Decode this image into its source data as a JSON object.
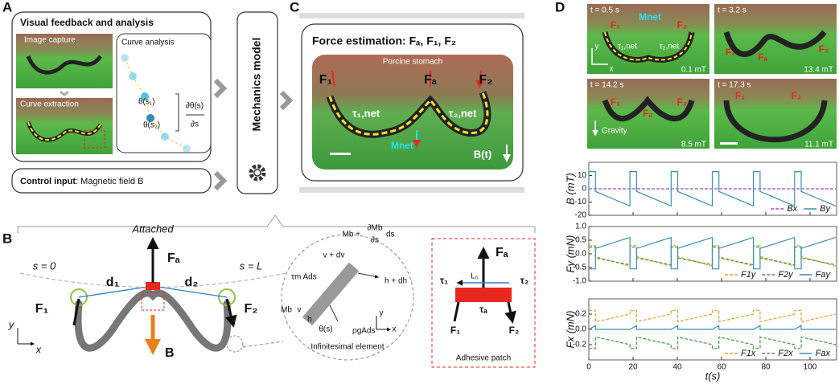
{
  "panel_labels": [
    "A",
    "B",
    "C",
    "D"
  ],
  "panel_a": {
    "title": "Visual feedback and analysis",
    "image_capture": "Image capture",
    "curve_extraction": "Curve extraction",
    "curve_analysis": "Curve analysis",
    "theta_s1": "θ(s₁)",
    "theta_s2": "θ(s₂)",
    "derivative_top": "∂θ(s)",
    "derivative_bottom": "∂s",
    "control_input_label": "Control input",
    "control_input_text": ": Magnetic field B"
  },
  "mechanics_model": "Mechanics model",
  "panel_c": {
    "title": "Force estimation: Fₐ, F₁, F₂",
    "photo_caption": "Porcine stomach",
    "f1": "F₁",
    "fa": "Fₐ",
    "f2": "F₂",
    "tau1": "τ₁,net",
    "tau2": "τ₂,net",
    "mnet": "Mnet",
    "bt": "B(t)"
  },
  "panel_b": {
    "attached": "Attached",
    "s0": "s = 0",
    "sl": "s = L",
    "fa": "Fₐ",
    "d1": "d₁",
    "d2": "d₂",
    "f1": "F₁",
    "f2": "F₂",
    "b": "B",
    "axis_y": "y",
    "axis_x": "x",
    "element": {
      "mb_plus": "Mb +",
      "dmb": "∂Mb",
      "ds_frac": "∂s",
      "ds": "ds",
      "v_dv": "v + dv",
      "tau_m": "τm Ads",
      "h_dh": "h + dh",
      "mb": "Mb",
      "v": "v",
      "h": "h",
      "theta": "θ(s)",
      "rho": "ρgAds",
      "axis_y": "y",
      "axis_x": "x",
      "caption": "Infinitesimal element"
    },
    "patch": {
      "l0": "L₀",
      "fa": "Fₐ",
      "tau1": "τ₁",
      "tau2": "τ₂",
      "taua": "τₐ",
      "f1": "F₁",
      "f2": "F₂",
      "caption": "Adhesive patch"
    }
  },
  "panel_d": {
    "photos": [
      {
        "time": "t = 0.5 s",
        "field": "0.1 mT",
        "f1": "F₁",
        "f2": "F₂",
        "mnet": "Mnet",
        "tau1": "τ₁,net",
        "tau2": "τ₂,net",
        "axis_y": "y",
        "axis_x": "x"
      },
      {
        "time": "t = 3.2 s",
        "field": "13.4 mT",
        "f1": "F₁",
        "fa": "Fₐ",
        "f2": "F₂"
      },
      {
        "time": "t = 14.2 s",
        "field": "8.5 mT",
        "f1": "F₁",
        "fa": "Fₐ",
        "f2": "F₂",
        "gravity": "Gravity"
      },
      {
        "time": "t = 17.3 s",
        "field": "11.1 mT",
        "f1": "F₁",
        "f2": "F₂"
      }
    ],
    "plots": [
      {
        "type": "line",
        "ylabel": "B (mT)",
        "xlim": [
          0,
          112
        ],
        "xticks": [
          0,
          20,
          40,
          60,
          80,
          100
        ],
        "ylim": [
          -20,
          20
        ],
        "yticks": [
          -20,
          -10,
          0,
          10
        ],
        "series": [
          {
            "name": "Bx",
            "color": "#9b4fc0",
            "dashed": true,
            "x": [
              0,
              112
            ],
            "values": [
              0,
              0
            ]
          },
          {
            "name": "By",
            "color": "#3a8fb7",
            "dashed": false,
            "x": [
              0,
              0,
              3,
              3,
              18.6,
              18.6,
              18.6,
              21.6,
              21.6,
              37.2,
              37.2,
              37.2,
              40.2,
              40.2,
              55.8,
              55.8,
              55.8,
              58.8,
              58.8,
              74.4,
              74.4,
              74.4,
              77.4,
              77.4,
              93,
              93,
              93,
              96,
              96,
              111.6
            ],
            "values": [
              0,
              13,
              13,
              -2,
              -13,
              0,
              13,
              13,
              -2,
              -13,
              0,
              13,
              13,
              -2,
              -13,
              0,
              13,
              13,
              -2,
              -13,
              0,
              13,
              13,
              -2,
              -13,
              0,
              13,
              13,
              -2,
              -13
            ]
          }
        ]
      },
      {
        "type": "line",
        "ylabel": "Fy (mN)",
        "xlim": [
          0,
          112
        ],
        "xticks": [
          0,
          20,
          40,
          60,
          80,
          100
        ],
        "ylim": [
          -1,
          1
        ],
        "yticks": [
          {
            "value": -1,
            "label": "-1.0"
          },
          {
            "value": -0.5,
            "label": "-0.5"
          },
          {
            "value": 0,
            "label": "0.0"
          },
          {
            "value": 0.5,
            "label": "0.5"
          },
          {
            "value": 1,
            "label": "1.0"
          }
        ],
        "series": [
          {
            "name": "F1y",
            "color": "#e0a030",
            "dashed": true,
            "x": [
              0,
              3,
              3,
              18.6,
              18.6,
              21.6,
              21.6,
              37.2,
              37.2,
              40.2,
              40.2,
              55.8,
              55.8,
              58.8,
              58.8,
              74.4,
              74.4,
              77.4,
              77.4,
              93,
              93,
              96,
              96,
              111.6
            ],
            "values": [
              0.3,
              0.3,
              -0.1,
              -0.45,
              0.3,
              0.3,
              -0.1,
              -0.45,
              0.3,
              0.3,
              -0.1,
              -0.45,
              0.3,
              0.3,
              -0.1,
              -0.45,
              0.3,
              0.3,
              -0.1,
              -0.45,
              0.3,
              0.3,
              -0.1,
              -0.45
            ]
          },
          {
            "name": "F2y",
            "color": "#3c9a3c",
            "dashed": true,
            "x": [
              0,
              3,
              3,
              18.6,
              18.6,
              21.6,
              21.6,
              37.2,
              37.2,
              40.2,
              40.2,
              55.8,
              55.8,
              58.8,
              58.8,
              74.4,
              74.4,
              77.4,
              77.4,
              93,
              93,
              96,
              96,
              111.6
            ],
            "values": [
              0.25,
              0.25,
              -0.15,
              -0.4,
              0.25,
              0.25,
              -0.15,
              -0.4,
              0.25,
              0.25,
              -0.15,
              -0.4,
              0.25,
              0.25,
              -0.15,
              -0.4,
              0.25,
              0.25,
              -0.15,
              -0.4,
              0.25,
              0.25,
              -0.15,
              -0.4
            ]
          },
          {
            "name": "Fay",
            "color": "#3a8fb7",
            "dashed": false,
            "x": [
              0,
              3,
              3,
              18.6,
              18.6,
              21.6,
              21.6,
              37.2,
              37.2,
              40.2,
              40.2,
              55.8,
              55.8,
              58.8,
              58.8,
              74.4,
              74.4,
              77.4,
              77.4,
              93,
              93,
              96,
              96,
              111.6
            ],
            "values": [
              -0.55,
              -0.55,
              0.2,
              0.6,
              -0.55,
              -0.55,
              0.2,
              0.6,
              -0.55,
              -0.55,
              0.2,
              0.6,
              -0.55,
              -0.55,
              0.2,
              0.6,
              -0.55,
              -0.55,
              0.2,
              0.6,
              -0.55,
              -0.55,
              0.2,
              0.6
            ]
          }
        ]
      },
      {
        "type": "line",
        "ylabel": "Fx (mN)",
        "xlabel": "t(s)",
        "xlim": [
          0,
          112
        ],
        "xticks": [
          0,
          20,
          40,
          60,
          80,
          100
        ],
        "ylim": [
          -0.4,
          0.4
        ],
        "yticks": [
          {
            "value": -0.2,
            "label": "-0.2"
          },
          {
            "value": 0,
            "label": "0.0"
          },
          {
            "value": 0.2,
            "label": "0.2"
          }
        ],
        "series": [
          {
            "name": "F1x",
            "color": "#e0a030",
            "dashed": true,
            "x": [
              0,
              3,
              3,
              18.6,
              18.6,
              21.6,
              21.6,
              37.2,
              37.2,
              40.2,
              40.2,
              55.8,
              55.8,
              58.8,
              58.8,
              74.4,
              74.4,
              77.4,
              77.4,
              93,
              93,
              96,
              96,
              111.6
            ],
            "values": [
              0.25,
              0.25,
              0.1,
              0.2,
              0.25,
              0.25,
              0.1,
              0.2,
              0.25,
              0.25,
              0.1,
              0.2,
              0.25,
              0.25,
              0.1,
              0.2,
              0.25,
              0.25,
              0.1,
              0.2,
              0.25,
              0.25,
              0.1,
              0.2
            ]
          },
          {
            "name": "F2x",
            "color": "#3c9a3c",
            "dashed": true,
            "x": [
              0,
              3,
              3,
              18.6,
              18.6,
              21.6,
              21.6,
              37.2,
              37.2,
              40.2,
              40.2,
              55.8,
              55.8,
              58.8,
              58.8,
              74.4,
              74.4,
              77.4,
              77.4,
              93,
              93,
              96,
              96,
              111.6
            ],
            "values": [
              -0.25,
              -0.25,
              -0.1,
              -0.2,
              -0.25,
              -0.25,
              -0.1,
              -0.2,
              -0.25,
              -0.25,
              -0.1,
              -0.2,
              -0.25,
              -0.25,
              -0.1,
              -0.2,
              -0.25,
              -0.25,
              -0.1,
              -0.2,
              -0.25,
              -0.25,
              -0.1,
              -0.2
            ]
          },
          {
            "name": "Fax",
            "color": "#3a8fb7",
            "dashed": false,
            "x": [
              0,
              3,
              3,
              18.6,
              18.6,
              21.6,
              21.6,
              37.2,
              37.2,
              40.2,
              40.2,
              55.8,
              55.8,
              58.8,
              58.8,
              74.4,
              74.4,
              77.4,
              77.4,
              93,
              93,
              96,
              96,
              111.6
            ],
            "values": [
              0,
              0.05,
              0,
              0,
              0,
              0.05,
              0,
              0,
              0,
              0.05,
              0,
              0,
              0,
              0.05,
              0,
              0,
              0,
              0.05,
              0,
              0,
              0,
              0.05,
              0,
              0
            ]
          }
        ]
      }
    ]
  }
}
